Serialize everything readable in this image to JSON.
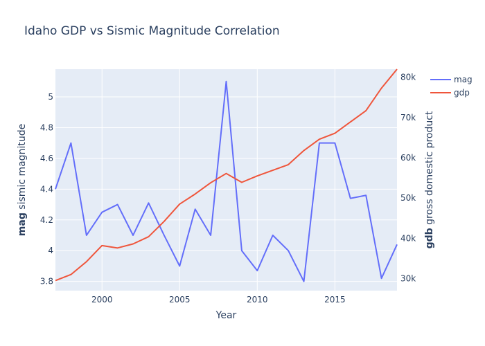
{
  "chart_data": {
    "type": "line",
    "title": "Idaho GDP vs Sismic Magnitude Correlation",
    "xlabel": "Year",
    "ylabel_left_bold": "mag",
    "ylabel_left_rest": " sismic magnitude",
    "ylabel_right_bold": "gdb",
    "ylabel_right_rest": " gross domestic product",
    "xlim": [
      1997,
      2019
    ],
    "ylim_left": [
      3.74,
      5.18
    ],
    "ylim_right": [
      27000,
      82000
    ],
    "x_ticks": [
      2000,
      2005,
      2010,
      2015
    ],
    "y_left_ticks": [
      3.8,
      4,
      4.2,
      4.4,
      4.6,
      4.8,
      5
    ],
    "y_right_ticks": [
      {
        "value": 30000,
        "label": "30k"
      },
      {
        "value": 40000,
        "label": "40k"
      },
      {
        "value": 50000,
        "label": "50k"
      },
      {
        "value": 60000,
        "label": "60k"
      },
      {
        "value": 70000,
        "label": "70k"
      },
      {
        "value": 80000,
        "label": "80k"
      }
    ],
    "grid": true,
    "legend_position": "top-right",
    "x": [
      1997,
      1998,
      1999,
      2000,
      2001,
      2002,
      2003,
      2004,
      2005,
      2006,
      2007,
      2008,
      2009,
      2010,
      2011,
      2012,
      2013,
      2014,
      2015,
      2016,
      2017,
      2018,
      2019
    ],
    "series": [
      {
        "name": "mag",
        "axis": "left",
        "color": "#636efa",
        "values": [
          4.4,
          4.7,
          4.1,
          4.25,
          4.3,
          4.1,
          4.31,
          4.1,
          3.9,
          4.27,
          4.1,
          5.1,
          4.0,
          3.87,
          4.1,
          4.0,
          3.8,
          4.7,
          4.7,
          4.34,
          4.36,
          3.82,
          4.04
        ]
      },
      {
        "name": "gdp",
        "axis": "right",
        "color": "#ef553b",
        "values": [
          29500,
          31000,
          34200,
          38200,
          37600,
          38600,
          40400,
          44200,
          48500,
          51000,
          53800,
          56100,
          53900,
          55500,
          56900,
          58300,
          61800,
          64600,
          66100,
          68900,
          71700,
          77300,
          82000
        ]
      }
    ]
  }
}
